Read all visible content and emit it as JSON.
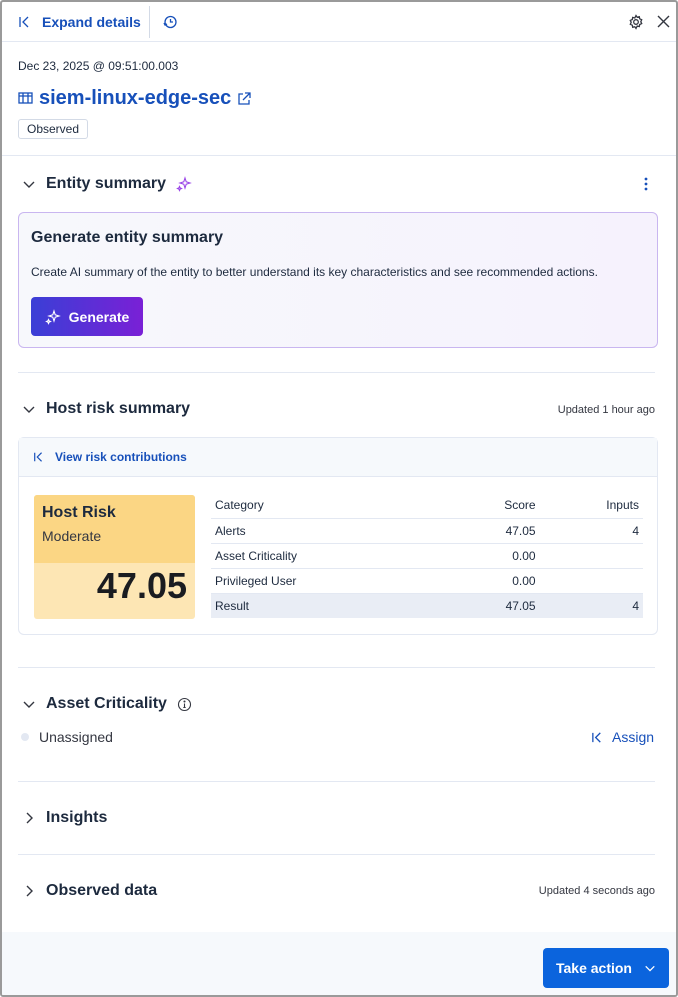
{
  "header": {
    "expand_label": "Expand details"
  },
  "entity": {
    "timestamp": "Dec 23, 2025 @ 09:51:00.003",
    "name": "siem-linux-edge-sec",
    "badge": "Observed"
  },
  "entity_summary": {
    "title": "Entity summary",
    "box_title": "Generate entity summary",
    "description": "Create AI summary of the entity to better understand its key characteristics and see recommended actions.",
    "generate_label": "Generate"
  },
  "host_risk": {
    "title": "Host risk summary",
    "updated": "Updated 1 hour ago",
    "view_link": "View risk contributions",
    "card": {
      "title": "Host Risk",
      "level": "Moderate",
      "score": "47.05"
    },
    "columns": [
      "Category",
      "Score",
      "Inputs"
    ],
    "rows": [
      [
        "Alerts",
        "47.05",
        "4"
      ],
      [
        "Asset Criticality",
        "0.00",
        ""
      ],
      [
        "Privileged User",
        "0.00",
        ""
      ]
    ],
    "result": [
      "Result",
      "47.05",
      "4"
    ]
  },
  "asset_criticality": {
    "title": "Asset Criticality",
    "value": "Unassigned",
    "assign_label": "Assign"
  },
  "insights": {
    "title": "Insights"
  },
  "observed": {
    "title": "Observed data",
    "updated": "Updated 4 seconds ago"
  },
  "footer": {
    "take_action_label": "Take action"
  },
  "colors": {
    "accent": "#0b64dd",
    "risk_moderate": "#fbd684"
  }
}
